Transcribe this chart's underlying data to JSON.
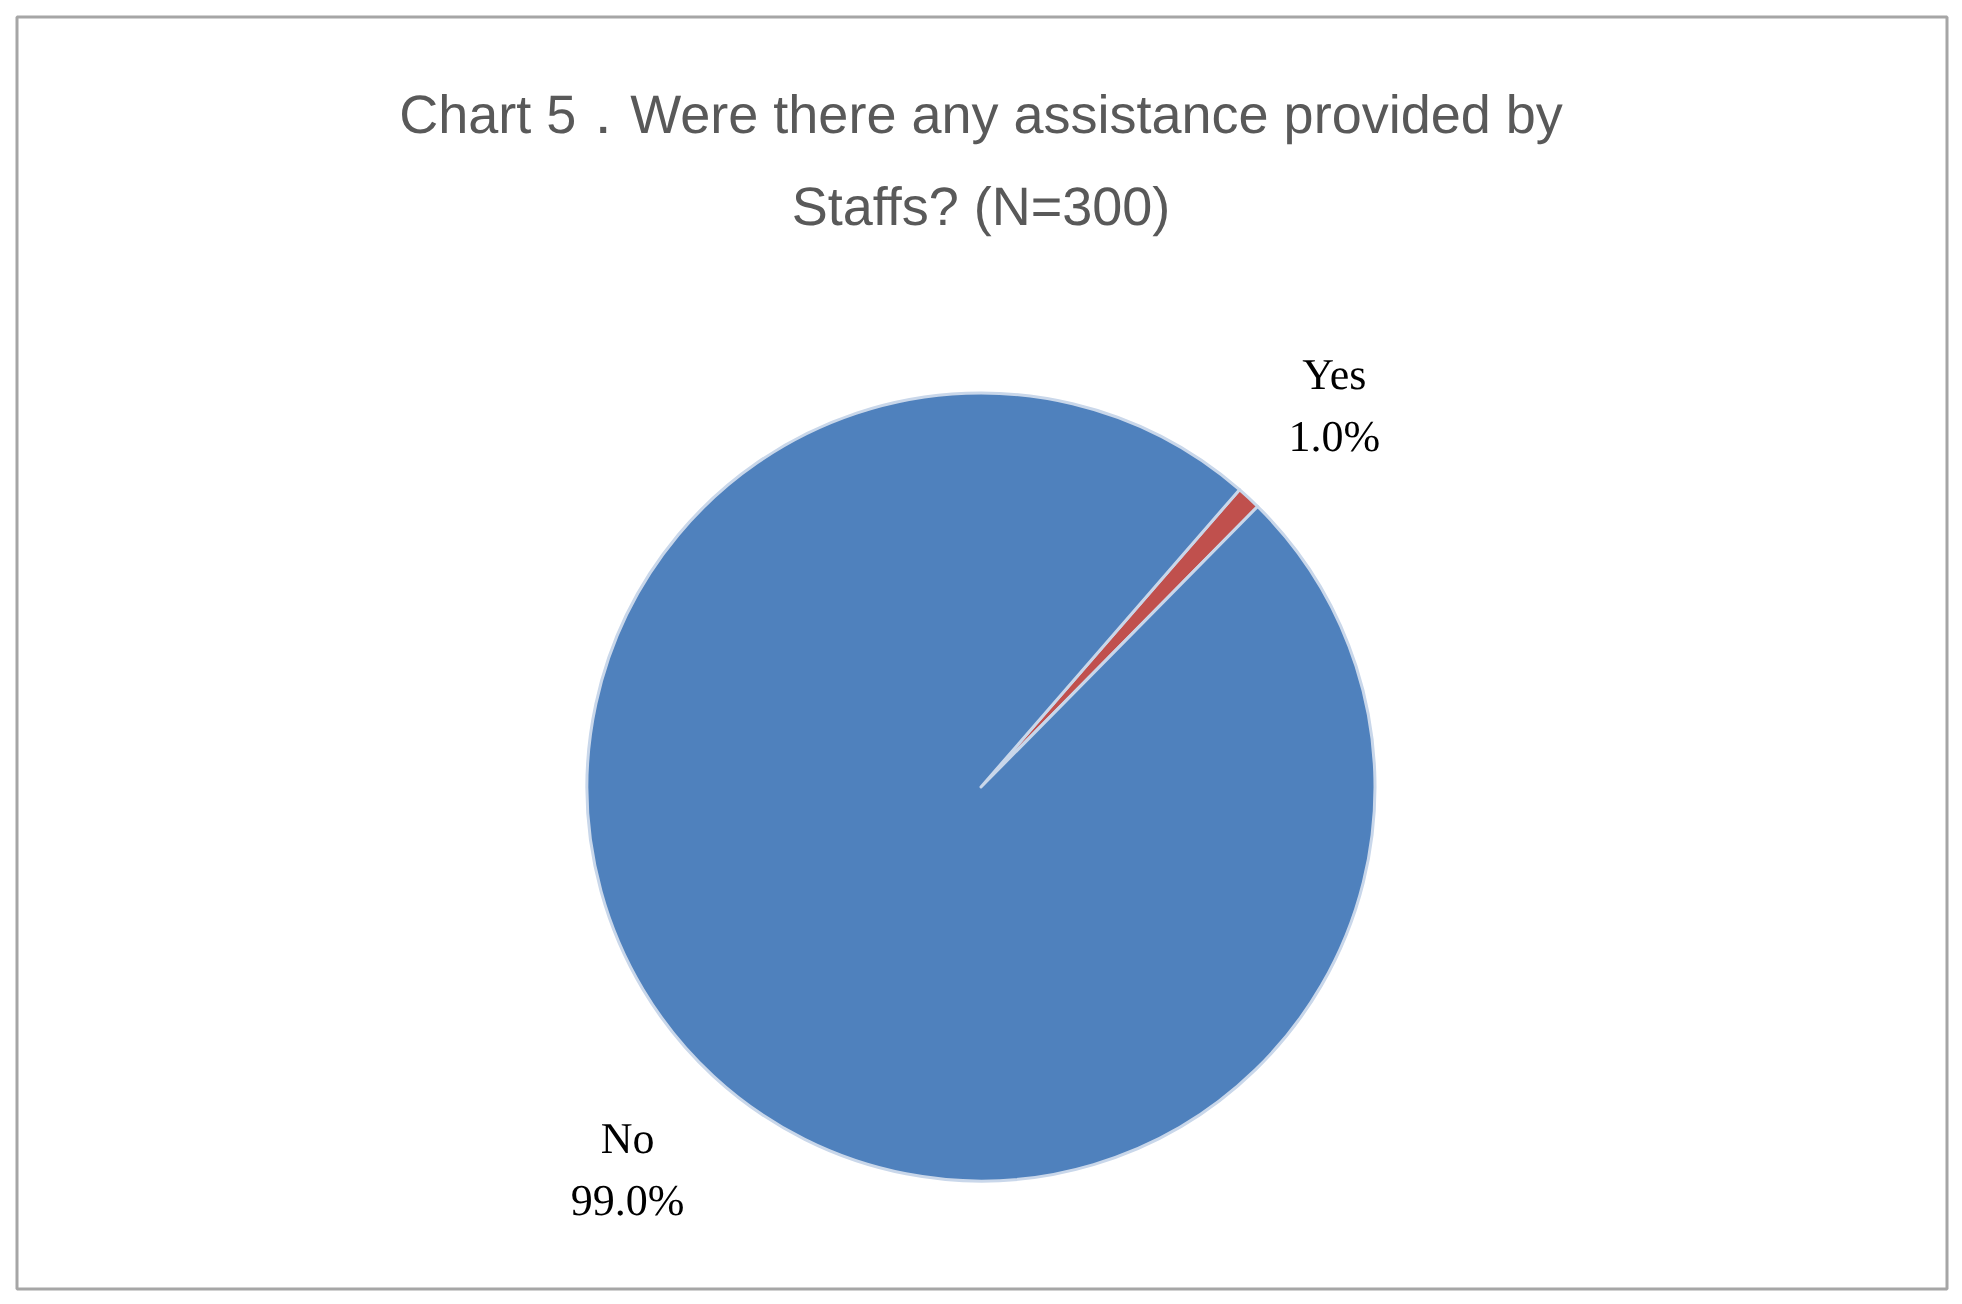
{
  "chart_data": {
    "type": "pie",
    "title": "Chart 5．Were there any assistance provided by Staffs? (N=300)",
    "categories": [
      "Yes",
      "No"
    ],
    "values": [
      1.0,
      99.0
    ],
    "colors": [
      "#c0504d",
      "#4f81bd"
    ],
    "value_labels": [
      "1.0%",
      "99.0%"
    ]
  }
}
